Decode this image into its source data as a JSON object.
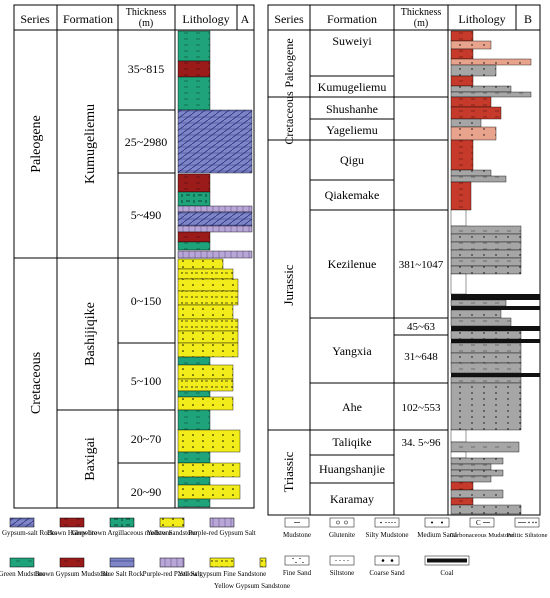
{
  "panel_a": {
    "label": "A",
    "headers": {
      "series": "Series",
      "formation": "Formation",
      "thickness": "Thickness",
      "thickness_unit": "(m)",
      "lithology": "Lithology"
    },
    "series": [
      {
        "name": "Paleogene",
        "formations": [
          {
            "name": "Kumugeliemu",
            "intervals": [
              {
                "thickness": "35~815",
                "lith": [
                  "green_mudstone",
                  "green_mudstone",
                  "brown_gypsum_mudstone",
                  "green_mudstone",
                  "green_mudstone"
                ]
              },
              {
                "thickness": "25~2980",
                "lith": [
                  "blue_gypsum_salt",
                  "blue_gypsum_salt",
                  "blue_gypsum_salt",
                  "blue_gypsum_salt",
                  "blue_gypsum_salt"
                ]
              },
              {
                "thickness": "5~490",
                "lith": [
                  "brown_gypsum_mudstone",
                  "grey_brown_argillaceous",
                  "green_mudstone",
                  "purple_paste_salt",
                  "blue_gypsum_salt",
                  "purple_paste_salt",
                  "brown_gypsum_mudstone",
                  "green_mudstone"
                ]
              }
            ]
          }
        ]
      },
      {
        "name": "Cretaceous",
        "formations": [
          {
            "name": "Bashijiqike",
            "intervals": [
              {
                "thickness": "0~150",
                "lith": [
                  "yellow_sandstone",
                  "yellow_gypsum_fine",
                  "yellow_sandstone",
                  "yellow_gypsum_fine",
                  "yellow_sandstone",
                  "yellow_gypsum_fine",
                  "yellow_sandstone"
                ]
              },
              {
                "thickness": "5~100",
                "lith": [
                  "yellow_sandstone",
                  "green_mudstone",
                  "yellow_sandstone",
                  "yellow_gypsum_fine",
                  "green_mudstone",
                  "yellow_sandstone"
                ]
              }
            ]
          },
          {
            "name": "Baxigai",
            "intervals": [
              {
                "thickness": "20~70",
                "lith": [
                  "green_mudstone",
                  "green_mudstone",
                  "yellow_sandstone",
                  "green_mudstone"
                ]
              },
              {
                "thickness": "20~90",
                "lith": [
                  "yellow_sandstone",
                  "green_mudstone",
                  "yellow_sandstone",
                  "green_mudstone",
                  "yellow_sandstone"
                ]
              }
            ]
          }
        ]
      }
    ]
  },
  "panel_b": {
    "label": "B",
    "headers": {
      "series": "Series",
      "formation": "Formation",
      "thickness": "Thickness",
      "thickness_unit": "(m)",
      "lithology": "Lithology"
    },
    "series": [
      {
        "name": "Paleogene",
        "formations": [
          {
            "name": "Suweiyi",
            "thickness": ""
          },
          {
            "name": "Kumugeliemu",
            "thickness": ""
          }
        ]
      },
      {
        "name": "Cretaceous",
        "formations": [
          {
            "name": "Shushanhe",
            "thickness": ""
          },
          {
            "name": "Yageliemu",
            "thickness": ""
          }
        ]
      },
      {
        "name": "Jurassic",
        "formations": [
          {
            "name": "Qigu",
            "thickness": ""
          },
          {
            "name": "Qiakemake",
            "thickness": ""
          },
          {
            "name": "Kezilenue",
            "thickness": "381~1047"
          },
          {
            "name": "Yangxia",
            "thickness": "31~648",
            "extra_thickness": "45~63"
          },
          {
            "name": "Ahe",
            "thickness": "102~553"
          }
        ]
      },
      {
        "name": "Triassic",
        "formations": [
          {
            "name": "Taliqike",
            "thickness": "34. 5~96"
          },
          {
            "name": "Huangshanjie",
            "thickness": ""
          },
          {
            "name": "Karamay",
            "thickness": ""
          }
        ]
      }
    ]
  },
  "legend_left": [
    {
      "key": "blue_gypsum_salt",
      "label": "Blue Gypsum-salt Rocks"
    },
    {
      "key": "brown_halopelite",
      "label": "Brown Halopelite"
    },
    {
      "key": "grey_brown_argillaceous",
      "label": "Grey-brown Argillaceous mudstone"
    },
    {
      "key": "yellow_sandstone",
      "label": "Yellow Sandstone"
    },
    {
      "key": "purple_gypsum_salt",
      "label": "Purple-red Gypsum Salt"
    },
    {
      "key": "green_mudstone",
      "label": "Green Mudstone"
    },
    {
      "key": "brown_gypsum_mudstone",
      "label": "Brown Gypsum Mudstone"
    },
    {
      "key": "blue_salt_rock",
      "label": "Blue Salt Rock"
    },
    {
      "key": "purple_paste_salt",
      "label": "Purple-red Paste Salt"
    },
    {
      "key": "yellow_gypsum_fine",
      "label": "Yellow gypsum Fine Sandstone"
    },
    {
      "key": "yellow_gypsum_sandstone",
      "label": "Yellow Gypsum Sandstone"
    }
  ],
  "legend_right": [
    {
      "key": "mudstone",
      "label": "Mudstone"
    },
    {
      "key": "glutenite",
      "label": "Glutenite"
    },
    {
      "key": "silty_mudstone",
      "label": "Silty Mudstone"
    },
    {
      "key": "medium_sand",
      "label": "Medium Sand"
    },
    {
      "key": "carbonaceous_mudstone",
      "label": "Carbonaceous Mudstone"
    },
    {
      "key": "pelitic_siltstone",
      "label": "Pelitic Siltstone"
    },
    {
      "key": "fine_sand",
      "label": "Fine Sand"
    },
    {
      "key": "siltstone",
      "label": "Siltstone"
    },
    {
      "key": "coarse_sand",
      "label": "Coarse Sand"
    },
    {
      "key": "coal",
      "label": "Coal"
    }
  ],
  "colors": {
    "green": "#1fa37a",
    "brown": "#9b1b1b",
    "yellow": "#f2ec1b",
    "blue": "#7f86c8",
    "purple": "#9c86c2",
    "grey": "#a6a6a6",
    "red": "#c53a2b",
    "coal": "#111111"
  }
}
